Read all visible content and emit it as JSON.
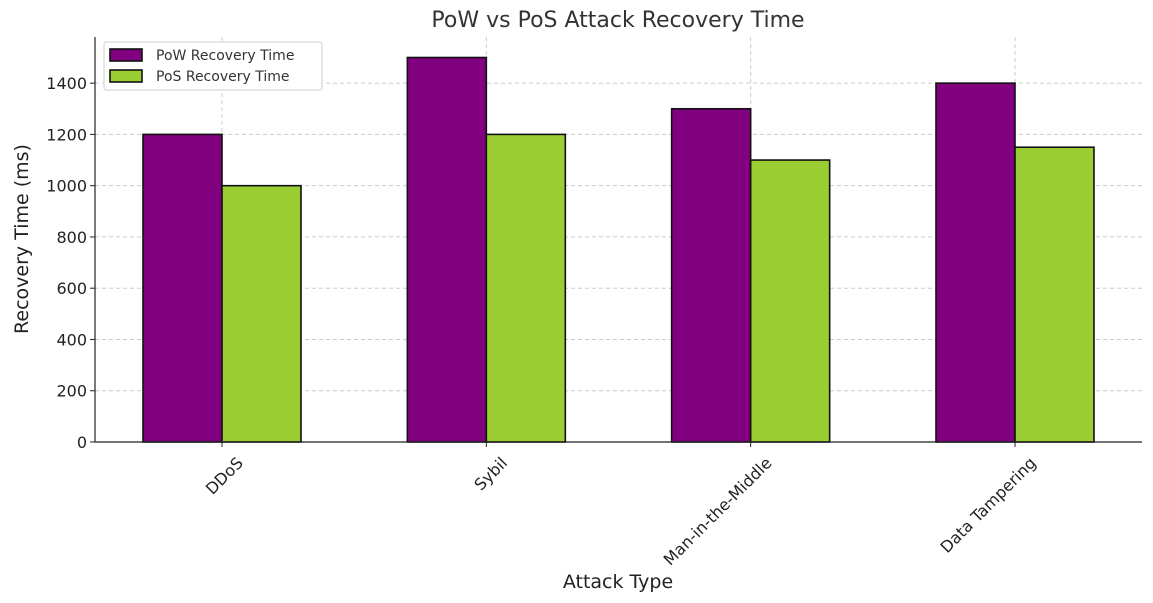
{
  "chart_data": {
    "type": "bar",
    "title": "PoW vs PoS Attack Recovery Time",
    "xlabel": "Attack Type",
    "ylabel": "Recovery Time (ms)",
    "categories": [
      "DDoS",
      "Sybil",
      "Man-in-the-Middle",
      "Data Tampering"
    ],
    "series": [
      {
        "name": "PoW Recovery Time",
        "color": "#800080",
        "values": [
          1200,
          1500,
          1300,
          1400
        ]
      },
      {
        "name": "PoS Recovery Time",
        "color": "#9acd32",
        "values": [
          1000,
          1200,
          1100,
          1150
        ]
      }
    ],
    "ylim": [
      0,
      1580
    ],
    "yticks": [
      0,
      200,
      400,
      600,
      800,
      1000,
      1200,
      1400
    ],
    "grid": true,
    "legend_position": "top-left"
  }
}
